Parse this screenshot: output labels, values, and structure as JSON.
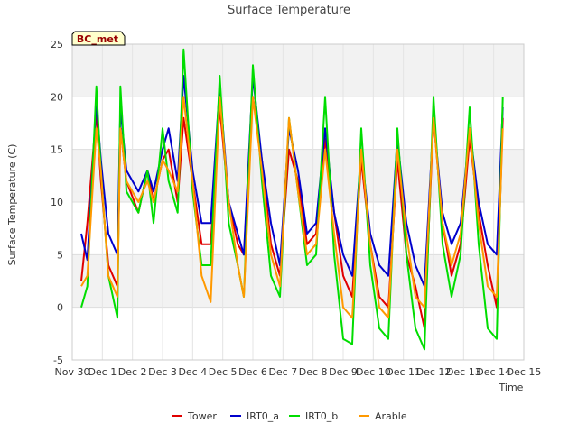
{
  "chart_data": {
    "type": "line",
    "title": "Surface Temperature",
    "xlabel": "Time",
    "ylabel": "Surface Temperature (C)",
    "station_label": "BC_met",
    "ylim": [
      -5,
      25
    ],
    "xlim": [
      0,
      15
    ],
    "yticks": [
      -5,
      0,
      5,
      10,
      15,
      20,
      25
    ],
    "xticks": [
      {
        "pos": 0,
        "label": "Nov 30"
      },
      {
        "pos": 1,
        "label": "Dec 1"
      },
      {
        "pos": 2,
        "label": "Dec 2"
      },
      {
        "pos": 3,
        "label": "Dec 3"
      },
      {
        "pos": 4,
        "label": "Dec 4"
      },
      {
        "pos": 5,
        "label": "Dec 5"
      },
      {
        "pos": 6,
        "label": "Dec 6"
      },
      {
        "pos": 7,
        "label": "Dec 7"
      },
      {
        "pos": 8,
        "label": "Dec 8"
      },
      {
        "pos": 9,
        "label": "Dec 9"
      },
      {
        "pos": 10,
        "label": "Dec 10"
      },
      {
        "pos": 11,
        "label": "Dec 11"
      },
      {
        "pos": 12,
        "label": "Dec 12"
      },
      {
        "pos": 13,
        "label": "Dec 13"
      },
      {
        "pos": 14,
        "label": "Dec 14"
      },
      {
        "pos": 15,
        "label": "Dec 15"
      }
    ],
    "grid": true,
    "legend_position": "bottom",
    "series": [
      {
        "name": "Tower",
        "color": "#e00000",
        "x": [
          0.3,
          0.5,
          0.8,
          0.95,
          1.2,
          1.5,
          1.6,
          1.8,
          2.2,
          2.5,
          2.7,
          3.0,
          3.2,
          3.5,
          3.7,
          4.0,
          4.3,
          4.6,
          4.9,
          5.2,
          5.5,
          5.7,
          6.0,
          6.3,
          6.6,
          6.9,
          7.2,
          7.5,
          7.8,
          8.1,
          8.4,
          8.7,
          9.0,
          9.3,
          9.6,
          9.9,
          10.2,
          10.5,
          10.8,
          11.1,
          11.4,
          11.7,
          12.0,
          12.3,
          12.6,
          12.9,
          13.2,
          13.5,
          13.8,
          14.1,
          14.3
        ],
        "y": [
          2.5,
          8,
          18.5,
          12,
          4,
          2,
          17,
          12,
          9,
          13,
          10,
          14,
          15,
          10,
          18,
          12,
          6,
          6,
          19,
          10,
          6,
          5,
          20,
          14,
          6,
          3,
          15,
          12,
          6,
          7,
          16,
          9,
          3,
          1,
          14,
          6,
          1,
          0,
          14,
          5,
          2,
          -2,
          18,
          8,
          3,
          6,
          16,
          9,
          4,
          0,
          18
        ]
      },
      {
        "name": "IRT0_a",
        "color": "#0000cc",
        "x": [
          0.3,
          0.5,
          0.8,
          0.95,
          1.2,
          1.5,
          1.6,
          1.8,
          2.2,
          2.5,
          2.7,
          3.0,
          3.2,
          3.5,
          3.7,
          4.0,
          4.3,
          4.6,
          4.9,
          5.2,
          5.5,
          5.7,
          6.0,
          6.3,
          6.6,
          6.9,
          7.2,
          7.5,
          7.8,
          8.1,
          8.4,
          8.7,
          9.0,
          9.3,
          9.6,
          9.9,
          10.2,
          10.5,
          10.8,
          11.1,
          11.4,
          11.7,
          12.0,
          12.3,
          12.6,
          12.9,
          13.2,
          13.5,
          13.8,
          14.1,
          14.3
        ],
        "y": [
          7,
          4.5,
          19.5,
          14,
          7,
          5,
          19,
          13,
          11,
          13,
          11,
          15,
          17,
          12,
          22,
          13,
          8,
          8,
          21,
          10,
          7,
          5,
          22,
          14,
          8,
          4,
          17,
          13,
          7,
          8,
          17,
          9,
          5,
          3,
          15,
          7,
          4,
          3,
          16,
          8,
          4,
          2,
          18,
          9,
          6,
          8,
          17,
          10,
          6,
          5,
          19
        ]
      },
      {
        "name": "IRT0_b",
        "color": "#00dd00",
        "x": [
          0.3,
          0.5,
          0.8,
          0.95,
          1.2,
          1.5,
          1.6,
          1.8,
          2.2,
          2.5,
          2.7,
          3.0,
          3.2,
          3.5,
          3.7,
          4.0,
          4.3,
          4.6,
          4.9,
          5.2,
          5.5,
          5.7,
          6.0,
          6.3,
          6.6,
          6.9,
          7.2,
          7.5,
          7.8,
          8.1,
          8.4,
          8.7,
          9.0,
          9.3,
          9.6,
          9.9,
          10.2,
          10.5,
          10.8,
          11.1,
          11.4,
          11.7,
          12.0,
          12.3,
          12.6,
          12.9,
          13.2,
          13.5,
          13.8,
          14.1,
          14.3
        ],
        "y": [
          0,
          2,
          21,
          13,
          3,
          -1,
          21,
          11,
          9,
          13,
          8,
          17,
          12,
          9,
          24.5,
          11,
          4,
          4,
          22,
          8,
          4,
          1,
          23,
          12,
          3,
          1,
          18,
          11,
          4,
          5,
          20,
          5,
          -3,
          -3.5,
          17,
          4,
          -2,
          -3,
          17,
          5,
          -2,
          -4,
          20,
          6,
          1,
          5,
          19,
          6,
          -2,
          -3,
          20
        ]
      },
      {
        "name": "Arable",
        "color": "#ff9900",
        "x": [
          0.3,
          0.5,
          0.8,
          0.95,
          1.2,
          1.5,
          1.6,
          1.8,
          2.2,
          2.5,
          2.7,
          3.0,
          3.2,
          3.5,
          3.7,
          4.0,
          4.3,
          4.6,
          4.9,
          5.2,
          5.5,
          5.7,
          6.0,
          6.3,
          6.6,
          6.9,
          7.2,
          7.5,
          7.8,
          8.1,
          8.4,
          8.7,
          9.0,
          9.3,
          9.6,
          9.9,
          10.2,
          10.5,
          10.8,
          11.1,
          11.4,
          11.7,
          12.0,
          12.3,
          12.6,
          12.9,
          13.2,
          13.5,
          13.8,
          14.1,
          14.3
        ],
        "y": [
          2,
          3,
          17,
          13,
          3,
          1,
          17,
          12,
          10,
          12,
          10,
          14,
          13,
          11,
          20,
          12,
          3,
          0.5,
          20,
          10,
          4,
          1,
          20,
          13,
          5,
          2,
          18,
          11,
          5,
          6,
          15,
          7,
          0,
          -1,
          15,
          6,
          0,
          -1,
          15,
          7,
          1,
          0,
          18,
          8,
          4,
          7,
          17,
          8,
          2,
          1,
          17
        ]
      }
    ]
  }
}
